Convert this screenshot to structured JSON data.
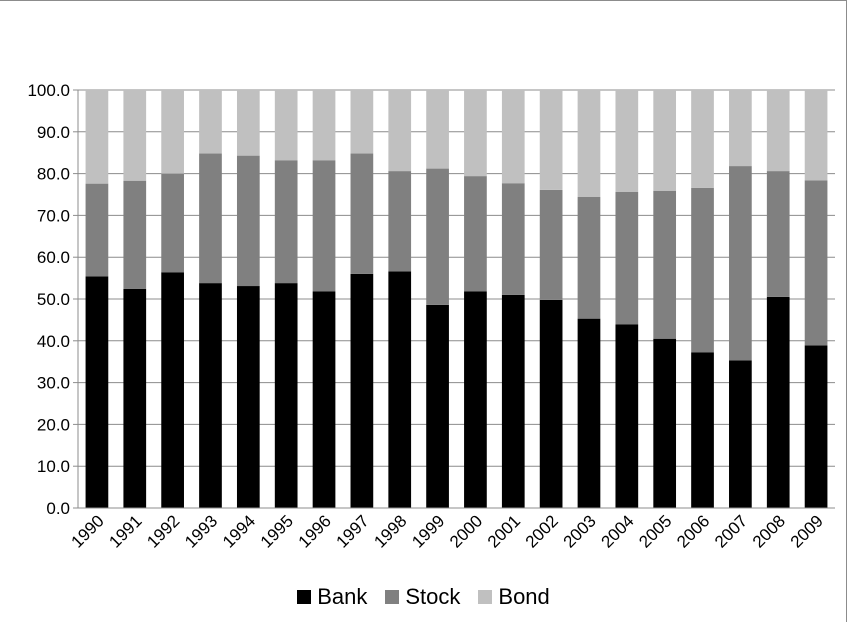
{
  "chart_data": {
    "type": "bar",
    "stacked": true,
    "categories": [
      "1990",
      "1991",
      "1992",
      "1993",
      "1994",
      "1995",
      "1996",
      "1997",
      "1998",
      "1999",
      "2000",
      "2001",
      "2002",
      "2003",
      "2004",
      "2005",
      "2006",
      "2007",
      "2008",
      "2009"
    ],
    "series": [
      {
        "name": "Bank",
        "color": "#000000",
        "values": [
          55.4,
          52.4,
          56.4,
          53.8,
          53.1,
          53.8,
          51.8,
          56.0,
          56.6,
          48.6,
          51.8,
          51.0,
          49.8,
          45.3,
          43.9,
          40.5,
          37.2,
          35.3,
          50.5,
          38.9
        ]
      },
      {
        "name": "Stock",
        "color": "#808080",
        "values": [
          22.2,
          25.9,
          23.6,
          31.0,
          31.2,
          29.4,
          31.4,
          28.8,
          24.0,
          32.6,
          27.6,
          26.7,
          26.3,
          29.1,
          31.7,
          35.4,
          39.4,
          46.5,
          30.1,
          39.5
        ]
      },
      {
        "name": "Bond",
        "color": "#c0c0c0",
        "values": [
          22.4,
          21.7,
          20.0,
          15.2,
          15.7,
          16.8,
          16.8,
          15.2,
          19.4,
          18.8,
          20.6,
          22.3,
          23.9,
          25.6,
          24.4,
          24.1,
          23.4,
          18.2,
          19.4,
          21.6
        ]
      }
    ],
    "ylim": [
      0,
      100
    ],
    "yticks": [
      "0.0",
      "10.0",
      "20.0",
      "30.0",
      "40.0",
      "50.0",
      "60.0",
      "70.0",
      "80.0",
      "90.0",
      "100.0"
    ],
    "grid": true,
    "legend_position": "bottom",
    "title": "",
    "xlabel": "",
    "ylabel": ""
  }
}
